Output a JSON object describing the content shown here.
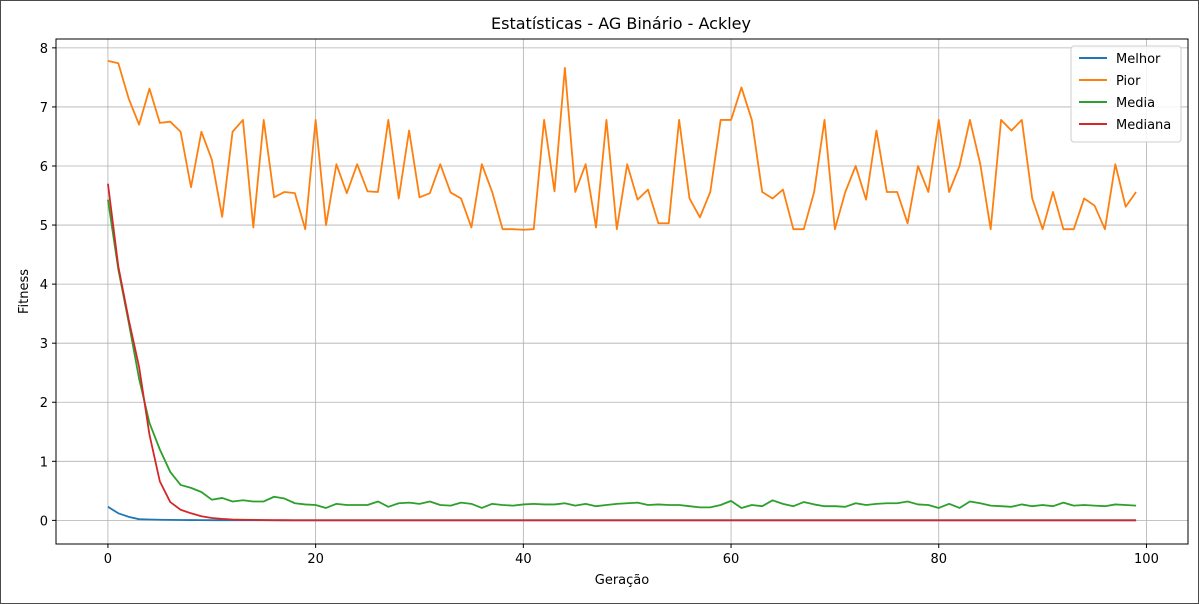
{
  "chart_data": {
    "type": "line",
    "title": "Estatísticas - AG Binário - Ackley",
    "xlabel": "Geração",
    "ylabel": "Fitness",
    "xlim": [
      -5,
      104
    ],
    "ylim": [
      -0.4,
      8.15
    ],
    "xticks": [
      0,
      20,
      40,
      60,
      80,
      100
    ],
    "yticks": [
      0,
      1,
      2,
      3,
      4,
      5,
      6,
      7,
      8
    ],
    "grid": true,
    "legend_position": "top-right",
    "series": [
      {
        "name": "Melhor",
        "color": "#1f77b4",
        "values": [
          0.23,
          0.12,
          0.06,
          0.02,
          0.015,
          0.01,
          0.008,
          0.006,
          0.005,
          0.004,
          0.003,
          0.003,
          0.002,
          0.002,
          0.002,
          0.002,
          0.001,
          0.001,
          0.001,
          0.001,
          0.001,
          0.001,
          0.001,
          0.001,
          0.001,
          0.001,
          0.001,
          0.001,
          0.001,
          0.001,
          0.001,
          0.001,
          0.001,
          0.001,
          0.001,
          0.001,
          0.001,
          0.001,
          0.001,
          0.001,
          0.001,
          0.001,
          0.001,
          0.001,
          0.001,
          0.001,
          0.001,
          0.001,
          0.001,
          0.001,
          0.001,
          0.001,
          0.001,
          0.001,
          0.001,
          0.001,
          0.001,
          0.001,
          0.001,
          0.001,
          0.001,
          0.001,
          0.001,
          0.001,
          0.001,
          0.001,
          0.001,
          0.001,
          0.001,
          0.001,
          0.001,
          0.001,
          0.001,
          0.001,
          0.001,
          0.001,
          0.001,
          0.001,
          0.001,
          0.001,
          0.001,
          0.001,
          0.001,
          0.001,
          0.001,
          0.001,
          0.001,
          0.001,
          0.001,
          0.001,
          0.001,
          0.001,
          0.001,
          0.001,
          0.001,
          0.001,
          0.001,
          0.001,
          0.001,
          0.001
        ]
      },
      {
        "name": "Pior",
        "color": "#ff7f0e",
        "values": [
          7.78,
          7.74,
          7.14,
          6.7,
          7.31,
          6.73,
          6.75,
          6.58,
          5.64,
          6.58,
          6.11,
          5.14,
          6.58,
          6.78,
          4.96,
          6.78,
          5.47,
          5.56,
          5.54,
          4.93,
          6.78,
          5.0,
          6.03,
          5.54,
          6.03,
          5.57,
          5.56,
          6.78,
          5.45,
          6.6,
          5.47,
          5.54,
          6.03,
          5.55,
          5.45,
          4.96,
          6.03,
          5.56,
          4.93,
          4.93,
          4.92,
          4.93,
          6.78,
          5.57,
          7.66,
          5.56,
          6.03,
          4.96,
          6.78,
          4.93,
          6.03,
          5.43,
          5.6,
          5.03,
          5.03,
          6.78,
          5.45,
          5.13,
          5.56,
          6.78,
          6.78,
          7.33,
          6.78,
          5.56,
          5.45,
          5.6,
          4.93,
          4.93,
          5.56,
          6.78,
          4.93,
          5.56,
          6.0,
          5.43,
          6.6,
          5.56,
          5.56,
          5.03,
          6.0,
          5.56,
          6.78,
          5.56,
          6.0,
          6.78,
          6.03,
          4.93,
          6.78,
          6.6,
          6.78,
          5.45,
          4.93,
          5.56,
          4.93,
          4.93,
          5.45,
          5.33,
          4.93,
          6.03,
          5.31,
          5.56
        ]
      },
      {
        "name": "Media",
        "color": "#2ca02c",
        "values": [
          5.43,
          4.25,
          3.35,
          2.4,
          1.65,
          1.2,
          0.82,
          0.6,
          0.55,
          0.48,
          0.35,
          0.38,
          0.32,
          0.34,
          0.32,
          0.32,
          0.4,
          0.37,
          0.29,
          0.27,
          0.26,
          0.21,
          0.28,
          0.26,
          0.26,
          0.26,
          0.32,
          0.23,
          0.29,
          0.3,
          0.28,
          0.32,
          0.26,
          0.25,
          0.3,
          0.28,
          0.21,
          0.28,
          0.26,
          0.25,
          0.27,
          0.28,
          0.27,
          0.27,
          0.29,
          0.25,
          0.28,
          0.24,
          0.26,
          0.28,
          0.29,
          0.3,
          0.26,
          0.27,
          0.26,
          0.26,
          0.24,
          0.22,
          0.22,
          0.26,
          0.33,
          0.21,
          0.26,
          0.24,
          0.34,
          0.28,
          0.24,
          0.31,
          0.27,
          0.24,
          0.24,
          0.23,
          0.29,
          0.26,
          0.28,
          0.29,
          0.29,
          0.32,
          0.27,
          0.26,
          0.21,
          0.28,
          0.21,
          0.32,
          0.29,
          0.25,
          0.24,
          0.23,
          0.27,
          0.24,
          0.26,
          0.24,
          0.3,
          0.25,
          0.26,
          0.25,
          0.24,
          0.27,
          0.26,
          0.25
        ]
      },
      {
        "name": "Mediana",
        "color": "#d62728",
        "values": [
          5.7,
          4.3,
          3.4,
          2.6,
          1.45,
          0.66,
          0.31,
          0.18,
          0.12,
          0.07,
          0.04,
          0.025,
          0.015,
          0.01,
          0.008,
          0.005,
          0.004,
          0.003,
          0.002,
          0.002,
          0.002,
          0.002,
          0.002,
          0.002,
          0.002,
          0.002,
          0.002,
          0.002,
          0.002,
          0.002,
          0.002,
          0.002,
          0.002,
          0.002,
          0.002,
          0.002,
          0.002,
          0.002,
          0.002,
          0.002,
          0.002,
          0.002,
          0.002,
          0.002,
          0.002,
          0.002,
          0.002,
          0.002,
          0.002,
          0.002,
          0.002,
          0.002,
          0.002,
          0.002,
          0.002,
          0.002,
          0.002,
          0.002,
          0.002,
          0.002,
          0.002,
          0.002,
          0.002,
          0.002,
          0.002,
          0.002,
          0.002,
          0.002,
          0.002,
          0.002,
          0.002,
          0.002,
          0.002,
          0.002,
          0.002,
          0.002,
          0.002,
          0.002,
          0.002,
          0.002,
          0.002,
          0.002,
          0.002,
          0.002,
          0.002,
          0.002,
          0.002,
          0.002,
          0.002,
          0.002,
          0.002,
          0.002,
          0.002,
          0.002,
          0.002,
          0.002,
          0.002,
          0.002,
          0.002,
          0.002
        ]
      }
    ]
  }
}
